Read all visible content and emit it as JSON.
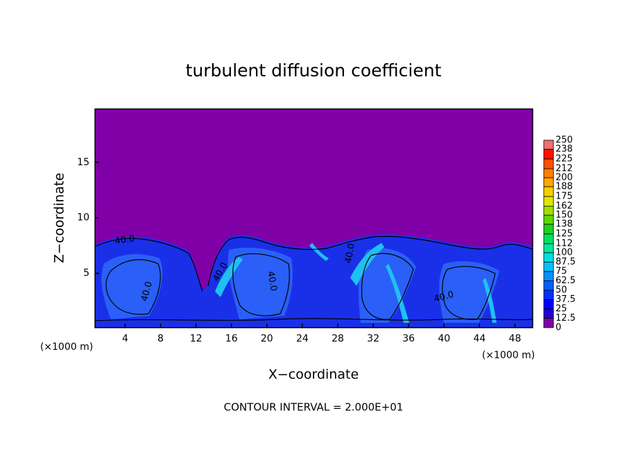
{
  "chart_data": {
    "type": "contour",
    "title": "turbulent diffusion coefficient",
    "xlabel": "X−coordinate",
    "ylabel": "Z−coordinate",
    "x_unit_left": "(×1000 m)",
    "x_unit_right": "(×1000 m)",
    "footer": "CONTOUR INTERVAL = 2.000E+01",
    "annotations": [
      "40.0",
      "40.0",
      "40.0",
      "40.0",
      "40.0",
      "40.0"
    ],
    "xlim": [
      0.6,
      50
    ],
    "ylim": [
      0.1,
      19.8
    ],
    "xticks": [
      4,
      8,
      12,
      16,
      20,
      24,
      28,
      32,
      36,
      40,
      44,
      48
    ],
    "yticks": [
      5,
      10,
      15
    ],
    "colorbar": {
      "levels": [
        0,
        12.5,
        25,
        37.5,
        50,
        62.5,
        75,
        87.5,
        100,
        112,
        125,
        138,
        150,
        162,
        175,
        188,
        200,
        212,
        225,
        238,
        250
      ],
      "colors": [
        "#8000a8",
        "#2000d0",
        "#0000ff",
        "#0030ff",
        "#0060ff",
        "#0090ff",
        "#00c0ff",
        "#00e0e0",
        "#00e8a0",
        "#00e060",
        "#20d020",
        "#60d800",
        "#a0e000",
        "#e0e800",
        "#f8d000",
        "#ffa800",
        "#ff8000",
        "#ff5000",
        "#ff1000",
        "#f07070"
      ]
    }
  }
}
